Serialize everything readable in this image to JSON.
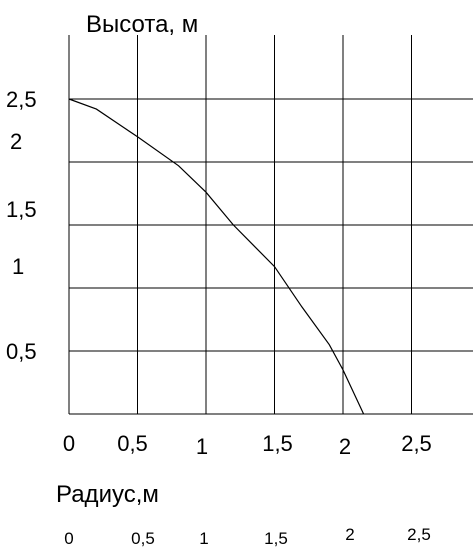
{
  "chart_data": {
    "type": "line",
    "ylabel": "Высота, м",
    "xlabel": "Радиус,м",
    "xlim": [
      0,
      2.9
    ],
    "ylim": [
      0,
      3
    ],
    "grid": true,
    "x_ticks": [
      {
        "value": 0,
        "label": "0"
      },
      {
        "value": 0.5,
        "label": "0,5"
      },
      {
        "value": 1,
        "label": "1"
      },
      {
        "value": 1.5,
        "label": "1,5"
      },
      {
        "value": 2,
        "label": "2"
      },
      {
        "value": 2.5,
        "label": "2,5"
      }
    ],
    "y_ticks": [
      {
        "value": 0.5,
        "label": "0,5"
      },
      {
        "value": 1,
        "label": "1"
      },
      {
        "value": 1.5,
        "label": "1,5"
      },
      {
        "value": 2,
        "label": "2"
      },
      {
        "value": 2.5,
        "label": "2,5"
      }
    ],
    "secondary_x_labels": [
      "0",
      "0,5",
      "1",
      "1,5",
      "2",
      "2,5"
    ],
    "series": [
      {
        "x": [
          0,
          0.2,
          0.5,
          0.8,
          1.0,
          1.2,
          1.5,
          1.7,
          1.9,
          2.0,
          2.15
        ],
        "y": [
          2.5,
          2.42,
          2.2,
          1.97,
          1.76,
          1.5,
          1.17,
          0.85,
          0.55,
          0.35,
          0.0
        ]
      }
    ]
  }
}
